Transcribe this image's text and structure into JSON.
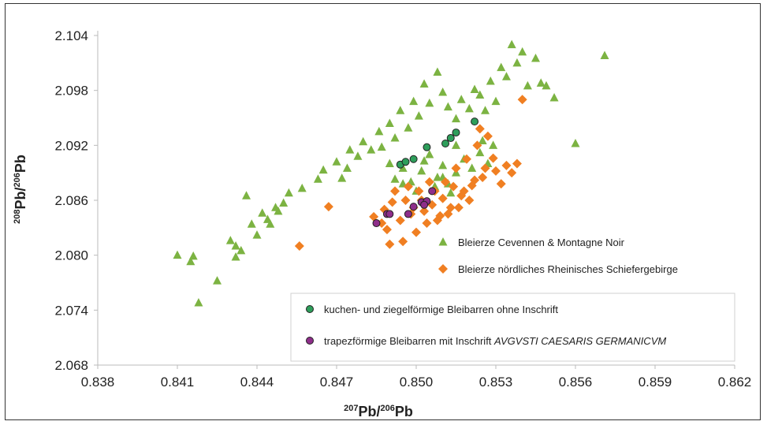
{
  "chart_data": {
    "type": "scatter",
    "xlim": [
      0.838,
      0.862
    ],
    "ylim": [
      2.068,
      2.104
    ],
    "x_ticks": [
      "0.838",
      "0.841",
      "0.844",
      "0.847",
      "0.850",
      "0.853",
      "0.856",
      "0.859",
      "0.862"
    ],
    "y_ticks": [
      "2.068",
      "2.074",
      "2.080",
      "2.086",
      "2.092",
      "2.098",
      "2.104"
    ],
    "xlabel": {
      "sup": "207",
      "a": "Pb/",
      "sup2": "206",
      "b": "Pb"
    },
    "ylabel": {
      "sup": "208",
      "a": "Pb/",
      "sup2": "206",
      "b": "Pb"
    },
    "grid": false,
    "series": [
      {
        "name": "Bleierze Cevennen & Montagne Noir",
        "marker": "triangle",
        "color": "#7cb342",
        "points": [
          [
            0.841,
            2.08
          ],
          [
            0.8415,
            2.0793
          ],
          [
            0.8416,
            2.0799
          ],
          [
            0.8425,
            2.0772
          ],
          [
            0.8418,
            2.0748
          ],
          [
            0.843,
            2.0816
          ],
          [
            0.8432,
            2.0798
          ],
          [
            0.8434,
            2.0805
          ],
          [
            0.8432,
            2.081
          ],
          [
            0.8438,
            2.0834
          ],
          [
            0.844,
            2.0822
          ],
          [
            0.8436,
            2.0865
          ],
          [
            0.8442,
            2.0846
          ],
          [
            0.8444,
            2.0839
          ],
          [
            0.8445,
            2.0834
          ],
          [
            0.8448,
            2.0848
          ],
          [
            0.845,
            2.0857
          ],
          [
            0.8452,
            2.0868
          ],
          [
            0.8447,
            2.0852
          ],
          [
            0.8457,
            2.0873
          ],
          [
            0.8463,
            2.0883
          ],
          [
            0.8465,
            2.0893
          ],
          [
            0.847,
            2.0902
          ],
          [
            0.8474,
            2.0895
          ],
          [
            0.8472,
            2.0884
          ],
          [
            0.8475,
            2.0915
          ],
          [
            0.8478,
            2.0908
          ],
          [
            0.848,
            2.0924
          ],
          [
            0.8483,
            2.0915
          ],
          [
            0.8486,
            2.0935
          ],
          [
            0.8487,
            2.0918
          ],
          [
            0.849,
            2.0944
          ],
          [
            0.8492,
            2.0928
          ],
          [
            0.8494,
            2.0958
          ],
          [
            0.8497,
            2.0939
          ],
          [
            0.8499,
            2.0968
          ],
          [
            0.8501,
            2.0952
          ],
          [
            0.8503,
            2.0987
          ],
          [
            0.8505,
            2.0966
          ],
          [
            0.8508,
            2.1
          ],
          [
            0.851,
            2.0978
          ],
          [
            0.8512,
            2.0962
          ],
          [
            0.8515,
            2.0949
          ],
          [
            0.8517,
            2.097
          ],
          [
            0.852,
            2.096
          ],
          [
            0.8522,
            2.0981
          ],
          [
            0.8524,
            2.0975
          ],
          [
            0.8526,
            2.0958
          ],
          [
            0.8528,
            2.099
          ],
          [
            0.853,
            2.0968
          ],
          [
            0.8532,
            2.1005
          ],
          [
            0.8534,
            2.0995
          ],
          [
            0.8536,
            2.103
          ],
          [
            0.8538,
            2.101
          ],
          [
            0.854,
            2.1022
          ],
          [
            0.8542,
            2.0985
          ],
          [
            0.8545,
            2.1015
          ],
          [
            0.8547,
            2.0988
          ],
          [
            0.8549,
            2.0985
          ],
          [
            0.8552,
            2.0972
          ],
          [
            0.8571,
            2.1018
          ],
          [
            0.856,
            2.0922
          ],
          [
            0.8505,
            2.091
          ],
          [
            0.851,
            2.0898
          ],
          [
            0.8508,
            2.0885
          ],
          [
            0.8502,
            2.0892
          ],
          [
            0.8498,
            2.088
          ],
          [
            0.8495,
            2.0878
          ],
          [
            0.85,
            2.087
          ],
          [
            0.8512,
            2.0878
          ],
          [
            0.8515,
            2.089
          ],
          [
            0.8518,
            2.0905
          ],
          [
            0.8521,
            2.0895
          ],
          [
            0.8524,
            2.0912
          ],
          [
            0.8527,
            2.09
          ],
          [
            0.8495,
            2.0895
          ],
          [
            0.8503,
            2.0903
          ],
          [
            0.8507,
            2.0875
          ],
          [
            0.851,
            2.0885
          ],
          [
            0.8513,
            2.0868
          ],
          [
            0.849,
            2.09
          ],
          [
            0.8492,
            2.0883
          ],
          [
            0.8515,
            2.092
          ],
          [
            0.8525,
            2.0925
          ],
          [
            0.8529,
            2.092
          ]
        ]
      },
      {
        "name": "Bleierze nördliches Rheinisches Schiefergebirge",
        "marker": "diamond",
        "color": "#f07f22",
        "points": [
          [
            0.8456,
            2.081
          ],
          [
            0.8467,
            2.0853
          ],
          [
            0.8484,
            2.0842
          ],
          [
            0.8487,
            2.0835
          ],
          [
            0.8489,
            2.0828
          ],
          [
            0.849,
            2.0812
          ],
          [
            0.8494,
            2.0838
          ],
          [
            0.8495,
            2.0815
          ],
          [
            0.8498,
            2.0845
          ],
          [
            0.85,
            2.0825
          ],
          [
            0.8502,
            2.086
          ],
          [
            0.8504,
            2.0835
          ],
          [
            0.8507,
            2.087
          ],
          [
            0.8509,
            2.0843
          ],
          [
            0.8511,
            2.088
          ],
          [
            0.8513,
            2.0852
          ],
          [
            0.8515,
            2.0895
          ],
          [
            0.8517,
            2.0865
          ],
          [
            0.8519,
            2.0905
          ],
          [
            0.8521,
            2.0876
          ],
          [
            0.8523,
            2.092
          ],
          [
            0.8525,
            2.0885
          ],
          [
            0.8527,
            2.093
          ],
          [
            0.853,
            2.0892
          ],
          [
            0.8532,
            2.0878
          ],
          [
            0.8534,
            2.0898
          ],
          [
            0.8536,
            2.089
          ],
          [
            0.8538,
            2.09
          ],
          [
            0.854,
            2.097
          ],
          [
            0.8524,
            2.0938
          ],
          [
            0.8492,
            2.087
          ],
          [
            0.8496,
            2.086
          ],
          [
            0.8499,
            2.0852
          ],
          [
            0.8503,
            2.0848
          ],
          [
            0.8506,
            2.0855
          ],
          [
            0.851,
            2.0862
          ],
          [
            0.8514,
            2.0875
          ],
          [
            0.8518,
            2.087
          ],
          [
            0.8522,
            2.0882
          ],
          [
            0.8526,
            2.0895
          ],
          [
            0.8488,
            2.085
          ],
          [
            0.8491,
            2.0858
          ],
          [
            0.8497,
            2.0875
          ],
          [
            0.8501,
            2.087
          ],
          [
            0.8505,
            2.088
          ],
          [
            0.8508,
            2.0838
          ],
          [
            0.8512,
            2.0845
          ],
          [
            0.8516,
            2.0852
          ],
          [
            0.852,
            2.086
          ],
          [
            0.8529,
            2.0906
          ]
        ]
      },
      {
        "name": "kuchen- und ziegelförmige Bleibarren ohne Inschrift",
        "marker": "circle",
        "color": "#2e9e5b",
        "points": [
          [
            0.8494,
            2.0899
          ],
          [
            0.8496,
            2.0902
          ],
          [
            0.8499,
            2.0905
          ],
          [
            0.8504,
            2.0918
          ],
          [
            0.8511,
            2.0922
          ],
          [
            0.8513,
            2.0928
          ],
          [
            0.8515,
            2.0934
          ],
          [
            0.8522,
            2.0946
          ]
        ]
      },
      {
        "name": "trapezförmige Bleibarren mit Inschrift AVGVSTI CAESARIS GERMANICVM",
        "marker": "circle",
        "color": "#8e2e8a",
        "points": [
          [
            0.8485,
            2.0835
          ],
          [
            0.8489,
            2.0845
          ],
          [
            0.849,
            2.0845
          ],
          [
            0.8497,
            2.0845
          ],
          [
            0.8499,
            2.0853
          ],
          [
            0.8502,
            2.0858
          ],
          [
            0.8504,
            2.0859
          ],
          [
            0.8506,
            2.087
          ],
          [
            0.8503,
            2.0855
          ]
        ]
      }
    ]
  },
  "legend_top": [
    {
      "label": "Bleierze Cevennen & Montagne Noir",
      "marker": "triangle",
      "color": "#7cb342"
    },
    {
      "label": "Bleierze nördliches Rheinisches Schiefergebirge",
      "marker": "diamond",
      "color": "#f07f22"
    }
  ],
  "legend_bottom": [
    {
      "label": "kuchen- und ziegelförmige Bleibarren ohne Inschrift",
      "marker": "circle",
      "color": "#2e9e5b"
    },
    {
      "label_plain": "trapezförmige Bleibarren mit Inschrift ",
      "label_italic": "AVGVSTI CAESARIS GERMANICVM",
      "marker": "circle",
      "color": "#8e2e8a"
    }
  ]
}
